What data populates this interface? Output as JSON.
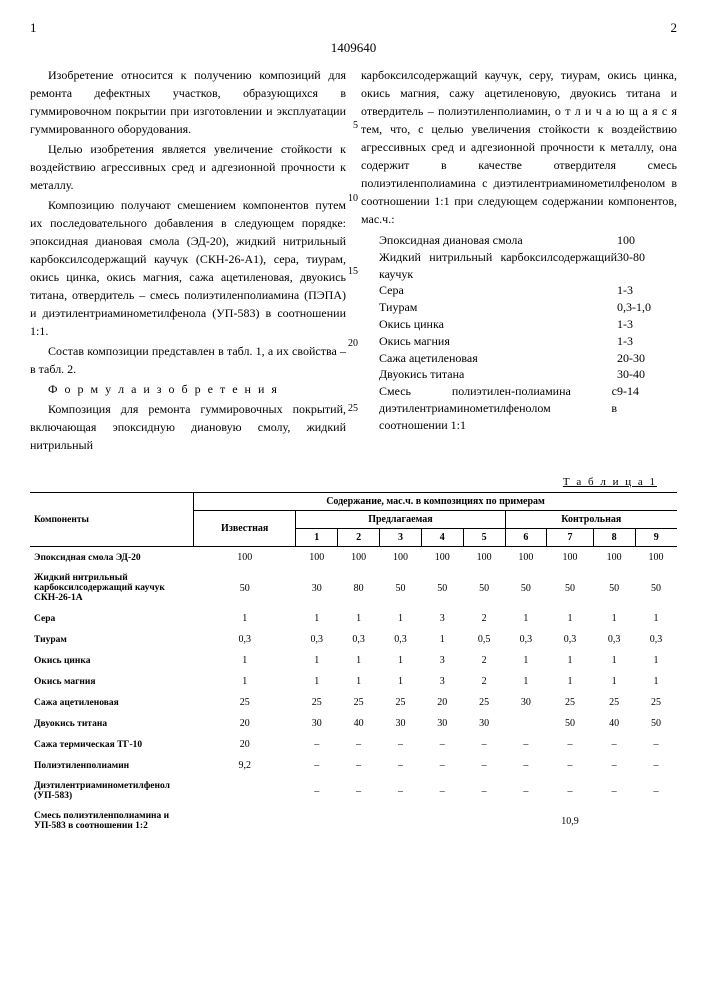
{
  "doc_number": "1409640",
  "page_left": "1",
  "page_right": "2",
  "line_numbers": [
    "5",
    "10",
    "15",
    "20",
    "25"
  ],
  "col1": {
    "p1": "Изобретение относится к получению композиций для ремонта дефектных участков, образующихся в гуммировочном покрытии при изготовлении и эксплуатации гуммированного оборудования.",
    "p2": "Целью изобретения является увеличение стойкости к воздействию агрессивных сред и адгезионной прочности к металлу.",
    "p3": "Композицию получают смешением компонентов путем их последовательного добавления в следующем порядке: эпоксидная диановая смола (ЭД-20), жидкий нитрильный карбоксилсодержащий каучук (СКН-26-А1), сера, тиурам, окись цинка, окись магния, сажа ацетиленовая, двуокись титана, отвердитель – смесь полиэтиленполиамина (ПЭПА) и диэтилентриаминометилфенола (УП-583) в соотношении 1:1.",
    "p4": "Состав композиции представлен в табл. 1, а их свойства – в табл. 2.",
    "formula_title": "Ф о р м у л а   и з о б р е т е н и я",
    "p5": "Композиция для ремонта гуммировочных покрытий, включающая эпоксидную диановую смолу, жидкий нитрильный"
  },
  "col2": {
    "p1": "карбоксилсодержащий каучук, серу, тиурам, окись цинка, окись магния, сажу ацетиленовую, двуокись титана и отвердитель – полиэтиленполиамин, о т л и ч а ю щ а я с я  тем, что, с целью увеличения стойкости к воздействию агрессивных сред и адгезионной прочности к металлу, она содержит в качестве отвердителя смесь полиэтиленполиамина с диэтилентриаминометилфенолом в соотношении 1:1 при следующем содержании компонентов, мас.ч.:",
    "ingredients": [
      {
        "label": "Эпоксидная диановая смола",
        "val": "100"
      },
      {
        "label": "Жидкий нитрильный карбоксилсодержащий каучук",
        "val": "30-80"
      },
      {
        "label": "Сера",
        "val": "1-3"
      },
      {
        "label": "Тиурам",
        "val": "0,3-1,0"
      },
      {
        "label": "Окись цинка",
        "val": "1-3"
      },
      {
        "label": "Окись магния",
        "val": "1-3"
      },
      {
        "label": "Сажа ацетиленовая",
        "val": "20-30"
      },
      {
        "label": "Двуокись титана",
        "val": "30-40"
      },
      {
        "label": "Смесь полиэтилен-полиамина с диэтилентриаминометилфенолом в соотношении 1:1",
        "val": "9-14"
      }
    ]
  },
  "table1": {
    "caption": "Т а б л и ц а 1",
    "header_component": "Компоненты",
    "header_content": "Содержание, мас.ч. в композициях по примерам",
    "header_known": "Известная",
    "header_proposed": "Предлагаемая",
    "header_control": "Контрольная",
    "cols_proposed": [
      "1",
      "2",
      "3",
      "4",
      "5"
    ],
    "cols_control": [
      "6",
      "7",
      "8",
      "9"
    ],
    "rows": [
      {
        "label": "Эпоксидная смола ЭД-20",
        "known": "100",
        "v": [
          "100",
          "100",
          "100",
          "100",
          "100",
          "100",
          "100",
          "100",
          "100"
        ]
      },
      {
        "label": "Жидкий нитрильный карбоксилсодержащий каучук СКН-26-1А",
        "known": "50",
        "v": [
          "30",
          "80",
          "50",
          "50",
          "50",
          "50",
          "50",
          "50",
          "50"
        ]
      },
      {
        "label": "Сера",
        "known": "1",
        "v": [
          "1",
          "1",
          "1",
          "3",
          "2",
          "1",
          "1",
          "1",
          "1"
        ]
      },
      {
        "label": "Тиурам",
        "known": "0,3",
        "v": [
          "0,3",
          "0,3",
          "0,3",
          "1",
          "0,5",
          "0,3",
          "0,3",
          "0,3",
          "0,3"
        ]
      },
      {
        "label": "Окись цинка",
        "known": "1",
        "v": [
          "1",
          "1",
          "1",
          "3",
          "2",
          "1",
          "1",
          "1",
          "1"
        ]
      },
      {
        "label": "Окись магния",
        "known": "1",
        "v": [
          "1",
          "1",
          "1",
          "3",
          "2",
          "1",
          "1",
          "1",
          "1"
        ]
      },
      {
        "label": "Сажа ацетиленовая",
        "known": "25",
        "v": [
          "25",
          "25",
          "25",
          "20",
          "25",
          "30",
          "25",
          "25",
          "25"
        ]
      },
      {
        "label": "Двуокись титана",
        "known": "20",
        "v": [
          "30",
          "40",
          "30",
          "30",
          "30",
          "",
          "50",
          "40",
          "50"
        ]
      },
      {
        "label": "Сажа термическая ТГ-10",
        "known": "20",
        "v": [
          "–",
          "–",
          "–",
          "–",
          "–",
          "–",
          "–",
          "–",
          "–"
        ]
      },
      {
        "label": "Полиэтиленполиамин",
        "known": "9,2",
        "v": [
          "–",
          "–",
          "–",
          "–",
          "–",
          "–",
          "–",
          "–",
          "–"
        ]
      },
      {
        "label": "Диэтилентриаминометилфенол (УП-583)",
        "known": "",
        "v": [
          "–",
          "–",
          "–",
          "–",
          "–",
          "–",
          "–",
          "–",
          "–"
        ]
      },
      {
        "label": "Смесь полиэтиленполиамина и УП-583 в соотношении 1:2",
        "known": "",
        "v": [
          "",
          "",
          "",
          "",
          "",
          "",
          "10,9",
          "",
          ""
        ]
      }
    ]
  }
}
